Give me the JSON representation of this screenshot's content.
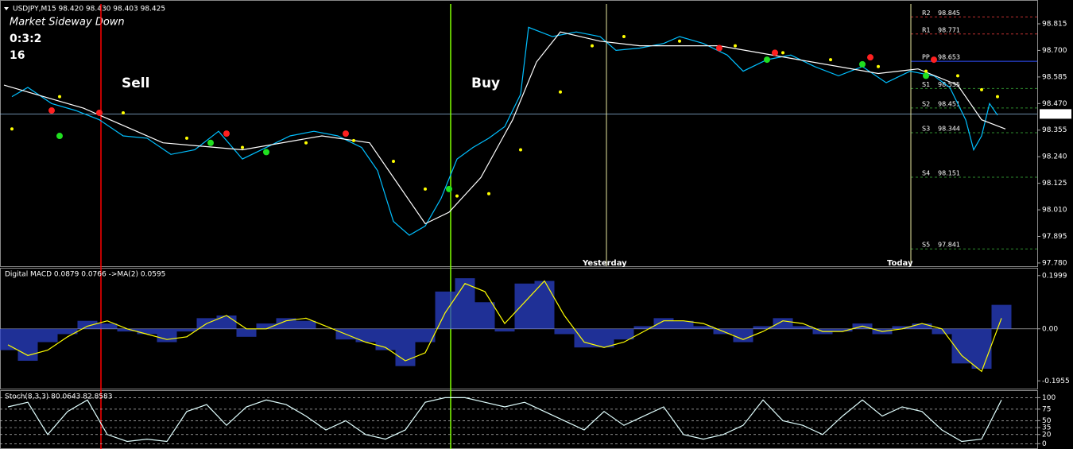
{
  "chart_data": [
    {
      "type": "line",
      "title": "USDJPY,M15 98.420 98.430 98.403 98.425",
      "annotations": [
        {
          "text": "Market Sideway Down",
          "color": "#ffd700"
        },
        {
          "text": "0:3:2",
          "color": "#ffa500"
        },
        {
          "text": "16",
          "color": "#00e000"
        }
      ],
      "xlim": [
        0,
        130
      ],
      "ylim": [
        97.766,
        98.901
      ],
      "yticks": [
        98.815,
        {
          "value": 98.7,
          "label": "98.700"
        },
        98.585,
        {
          "value": 98.47,
          "label": "98.470"
        },
        98.355,
        {
          "value": 98.24,
          "label": "98.240"
        },
        98.125,
        {
          "value": 98.01,
          "label": "98.010"
        },
        97.895,
        {
          "value": 97.78,
          "label": "97.780"
        }
      ],
      "last": 98.425,
      "series": [
        {
          "color": "#00bfff",
          "style": "line",
          "x": [
            1,
            3,
            6,
            9,
            12,
            15,
            18,
            21,
            24,
            27,
            30,
            33,
            36,
            39,
            42,
            45,
            47,
            49,
            51,
            53,
            55,
            57,
            59,
            61,
            63,
            65,
            66,
            69,
            72,
            75,
            77,
            80,
            83,
            85,
            88,
            91,
            93,
            96,
            99,
            102,
            105,
            108,
            111,
            114,
            117,
            119,
            121,
            122,
            123,
            124,
            125
          ],
          "values": [
            98.5,
            98.54,
            98.47,
            98.44,
            98.4,
            98.33,
            98.32,
            98.25,
            98.27,
            98.35,
            98.23,
            98.28,
            98.33,
            98.35,
            98.33,
            98.28,
            98.18,
            97.96,
            97.9,
            97.94,
            98.06,
            98.23,
            98.28,
            98.32,
            98.37,
            98.51,
            98.8,
            98.76,
            98.78,
            98.76,
            98.7,
            98.71,
            98.73,
            98.76,
            98.73,
            98.68,
            98.61,
            98.66,
            98.68,
            98.63,
            98.59,
            98.63,
            98.56,
            98.61,
            98.59,
            98.54,
            98.4,
            98.27,
            98.33,
            98.47,
            98.42
          ]
        },
        {
          "color": "#ffffff",
          "style": "line",
          "x": [
            0,
            10,
            20,
            30,
            40,
            46,
            50,
            53,
            56,
            60,
            64,
            67,
            70,
            75,
            80,
            90,
            100,
            110,
            115,
            120,
            123,
            126
          ],
          "values": [
            98.55,
            98.45,
            98.3,
            98.27,
            98.33,
            98.3,
            98.1,
            97.95,
            98.0,
            98.15,
            98.4,
            98.65,
            98.78,
            98.74,
            98.72,
            98.72,
            98.66,
            98.6,
            98.62,
            98.55,
            98.4,
            98.36
          ]
        },
        {
          "color": "#ffff00",
          "style": "dots",
          "x": [
            1,
            7,
            15,
            23,
            30,
            38,
            44,
            49,
            53,
            57,
            61,
            65,
            70,
            74,
            78,
            85,
            92,
            98,
            104,
            110,
            116,
            120,
            123,
            125
          ],
          "values": [
            98.36,
            98.5,
            98.43,
            98.32,
            98.28,
            98.3,
            98.31,
            98.22,
            98.1,
            98.07,
            98.08,
            98.27,
            98.52,
            98.72,
            98.76,
            98.74,
            98.72,
            98.69,
            98.66,
            98.63,
            98.61,
            98.59,
            98.53,
            98.5
          ]
        },
        {
          "color": "#ff2020",
          "style": "points",
          "x": [
            6,
            12,
            28,
            43,
            90,
            97,
            109,
            117
          ],
          "values": [
            98.44,
            98.43,
            98.34,
            98.34,
            98.71,
            98.69,
            98.67,
            98.66
          ]
        },
        {
          "color": "#20e020",
          "style": "points",
          "x": [
            7,
            26,
            33,
            56,
            96,
            108,
            116
          ],
          "values": [
            98.33,
            98.3,
            98.26,
            98.1,
            98.66,
            98.64,
            98.59
          ]
        }
      ],
      "pivots": [
        {
          "label": "R2",
          "value": 98.845,
          "color": "#c03030"
        },
        {
          "label": "R1",
          "value": 98.771,
          "color": "#c03030"
        },
        {
          "label": "PP",
          "value": 98.653,
          "color": "#3050ff"
        },
        {
          "label": "S1",
          "value": 98.535,
          "color": "#2e8b2e"
        },
        {
          "label": "S2",
          "value": 98.451,
          "color": "#2e8b2e"
        },
        {
          "label": "S3",
          "value": 98.344,
          "color": "#2e8b2e"
        },
        {
          "label": "S4",
          "value": 98.151,
          "color": "#2e8b2e"
        },
        {
          "label": "S5",
          "value": 97.841,
          "color": "#2e8b2e"
        }
      ],
      "vlines": [
        {
          "x": 12.2,
          "color": "#ff0000",
          "label": "Sell"
        },
        {
          "x": 56.2,
          "color": "#7fff00",
          "label": "Buy"
        },
        {
          "x": 75.8,
          "color": "#e8e8a0",
          "label": "Yesterday"
        },
        {
          "x": 114.1,
          "color": "#e8e8a0",
          "label": "Today"
        }
      ]
    },
    {
      "type": "bar",
      "title": "Digital MACD 0.0879 0.0766  ->MA(2) 0.0595",
      "xlim": [
        0,
        130
      ],
      "ylim": [
        -0.2216,
        0.2202
      ],
      "yticks": [
        0.1999,
        {
          "value": 0,
          "label": "0.00"
        },
        -0.1955
      ],
      "series": [
        {
          "color": "#2a40c8",
          "style": "bar",
          "x": [
            0.5,
            3,
            5.5,
            8,
            10.5,
            13,
            15.5,
            18,
            20.5,
            23,
            25.5,
            28,
            30.5,
            33,
            35.5,
            38,
            40.5,
            43,
            45.5,
            48,
            50.5,
            53,
            55.5,
            58,
            60.5,
            63,
            65.5,
            68,
            70.5,
            73,
            75.5,
            78,
            80.5,
            83,
            85.5,
            88,
            90.5,
            93,
            95.5,
            98,
            100.5,
            103,
            105.5,
            108,
            110.5,
            113,
            115.5,
            118,
            120.5,
            123,
            125.5
          ],
          "values": [
            -0.08,
            -0.12,
            -0.05,
            -0.02,
            0.03,
            0.02,
            -0.01,
            -0.02,
            -0.05,
            -0.01,
            0.04,
            0.05,
            -0.03,
            0.02,
            0.04,
            0.03,
            0.0,
            -0.04,
            -0.05,
            -0.08,
            -0.14,
            -0.05,
            0.14,
            0.19,
            0.1,
            -0.01,
            0.17,
            0.18,
            -0.02,
            -0.07,
            -0.07,
            -0.04,
            0.01,
            0.04,
            0.03,
            0.01,
            -0.02,
            -0.05,
            0.01,
            0.04,
            0.01,
            -0.02,
            -0.01,
            0.02,
            -0.02,
            0.01,
            0.02,
            -0.02,
            -0.13,
            -0.15,
            0.09
          ]
        },
        {
          "color": "#ffff00",
          "style": "line",
          "x": [
            0.5,
            3,
            5.5,
            8,
            10.5,
            13,
            15.5,
            18,
            20.5,
            23,
            25.5,
            28,
            30.5,
            33,
            35.5,
            38,
            40.5,
            43,
            45.5,
            48,
            50.5,
            53,
            55.5,
            58,
            60.5,
            63,
            65.5,
            68,
            70.5,
            73,
            75.5,
            78,
            80.5,
            83,
            85.5,
            88,
            90.5,
            93,
            95.5,
            98,
            100.5,
            103,
            105.5,
            108,
            110.5,
            113,
            115.5,
            118,
            120.5,
            123,
            125.5
          ],
          "values": [
            -0.06,
            -0.1,
            -0.08,
            -0.03,
            0.01,
            0.03,
            0.0,
            -0.02,
            -0.04,
            -0.03,
            0.02,
            0.05,
            0.0,
            0.0,
            0.03,
            0.04,
            0.01,
            -0.02,
            -0.05,
            -0.07,
            -0.12,
            -0.09,
            0.06,
            0.17,
            0.14,
            0.02,
            0.1,
            0.18,
            0.05,
            -0.05,
            -0.07,
            -0.05,
            -0.01,
            0.03,
            0.03,
            0.02,
            -0.01,
            -0.04,
            -0.01,
            0.03,
            0.02,
            -0.01,
            -0.01,
            0.01,
            -0.01,
            0.0,
            0.02,
            0.0,
            -0.1,
            -0.16,
            0.04
          ]
        }
      ]
    },
    {
      "type": "line",
      "title": "Stoch(8,3,3) 80.0643 82.8583",
      "xlim": [
        0,
        130
      ],
      "ylim": [
        -8,
        111
      ],
      "yticks": [
        100,
        75,
        50,
        35,
        20,
        0
      ],
      "grid": true,
      "series": [
        {
          "color": "#e0ffff",
          "style": "line",
          "x": [
            0.5,
            3,
            5.5,
            8,
            10.5,
            13,
            15.5,
            18,
            20.5,
            23,
            25.5,
            28,
            30.5,
            33,
            35.5,
            38,
            40.5,
            43,
            45.5,
            48,
            50.5,
            53,
            55.5,
            58,
            60.5,
            63,
            65.5,
            68,
            70.5,
            73,
            75.5,
            78,
            80.5,
            83,
            85.5,
            88,
            90.5,
            93,
            95.5,
            98,
            100.5,
            103,
            105.5,
            108,
            110.5,
            113,
            115.5,
            118,
            120.5,
            123,
            125.5
          ],
          "values": [
            80,
            90,
            20,
            70,
            95,
            20,
            5,
            10,
            5,
            70,
            85,
            40,
            80,
            95,
            85,
            60,
            30,
            50,
            20,
            10,
            30,
            90,
            100,
            100,
            90,
            80,
            90,
            70,
            50,
            30,
            70,
            40,
            60,
            80,
            20,
            10,
            20,
            40,
            95,
            50,
            40,
            20,
            60,
            95,
            60,
            80,
            70,
            30,
            5,
            10,
            95
          ]
        }
      ]
    }
  ]
}
